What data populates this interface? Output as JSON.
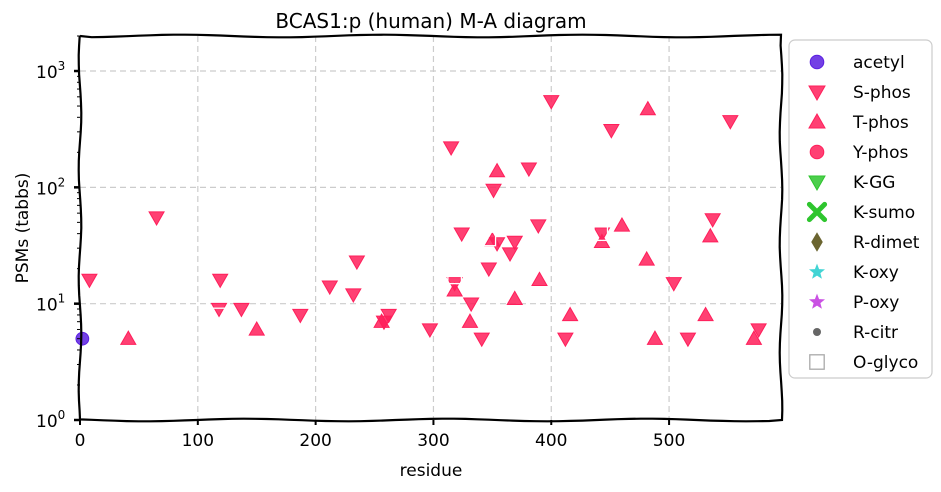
{
  "chart_data": {
    "type": "scatter",
    "title": "BCAS1:p (human) M-A diagram",
    "xlabel": "residue",
    "ylabel": "PSMs (tabbs)",
    "xlim": [
      0,
      595
    ],
    "ylim": [
      1,
      2000
    ],
    "yscale": "log",
    "grid": true,
    "legend_position": "right",
    "x_ticks": [
      {
        "value": 0,
        "label": "0"
      },
      {
        "value": 100,
        "label": "100"
      },
      {
        "value": 200,
        "label": "200"
      },
      {
        "value": 300,
        "label": "300"
      },
      {
        "value": 400,
        "label": "400"
      },
      {
        "value": 500,
        "label": "500"
      }
    ],
    "y_ticks": [
      {
        "value": 1,
        "base": "10",
        "exp": "0"
      },
      {
        "value": 10,
        "base": "10",
        "exp": "1"
      },
      {
        "value": 100,
        "base": "10",
        "exp": "2"
      },
      {
        "value": 1000,
        "base": "10",
        "exp": "3"
      }
    ],
    "series": [
      {
        "name": "acetyl",
        "marker": "circle",
        "color": "#5a1fe0",
        "points": [
          [
            2,
            5
          ]
        ]
      },
      {
        "name": "S-phos",
        "marker": "triangle-down",
        "color": "#ff1f5b",
        "points": [
          [
            8,
            16
          ],
          [
            65,
            55
          ],
          [
            118,
            9
          ],
          [
            119,
            16
          ],
          [
            137,
            9
          ],
          [
            187,
            8
          ],
          [
            212,
            14
          ],
          [
            232,
            12
          ],
          [
            235,
            23
          ],
          [
            258,
            7
          ],
          [
            262,
            8
          ],
          [
            297,
            6
          ],
          [
            315,
            220
          ],
          [
            318,
            15
          ],
          [
            324,
            40
          ],
          [
            332,
            10
          ],
          [
            341,
            5
          ],
          [
            347,
            20
          ],
          [
            351,
            95
          ],
          [
            354,
            33
          ],
          [
            365,
            27
          ],
          [
            369,
            34
          ],
          [
            381,
            145
          ],
          [
            389,
            47
          ],
          [
            400,
            550
          ],
          [
            412,
            5
          ],
          [
            443,
            40
          ],
          [
            451,
            310
          ],
          [
            504,
            15
          ],
          [
            516,
            5
          ],
          [
            537,
            53
          ],
          [
            552,
            370
          ],
          [
            576,
            6
          ]
        ]
      },
      {
        "name": "T-phos",
        "marker": "triangle-up",
        "color": "#ff1f5b",
        "points": [
          [
            41,
            5
          ],
          [
            150,
            6
          ],
          [
            256,
            7
          ],
          [
            318,
            13
          ],
          [
            331,
            7
          ],
          [
            350,
            35
          ],
          [
            354,
            138
          ],
          [
            369,
            11
          ],
          [
            390,
            16
          ],
          [
            416,
            8
          ],
          [
            443,
            34
          ],
          [
            460,
            47
          ],
          [
            481,
            24
          ],
          [
            482,
            470
          ],
          [
            488,
            5
          ],
          [
            531,
            8
          ],
          [
            535,
            38
          ],
          [
            572,
            5
          ]
        ]
      },
      {
        "name": "Y-phos",
        "marker": "circle",
        "color": "#ff1f5b",
        "points": []
      },
      {
        "name": "K-GG",
        "marker": "triangle-down",
        "color": "#2ec52e",
        "points": []
      },
      {
        "name": "K-sumo",
        "marker": "x",
        "color": "#2ec52e",
        "points": []
      },
      {
        "name": "R-dimet",
        "marker": "diamond",
        "color": "#6b6530",
        "points": []
      },
      {
        "name": "K-oxy",
        "marker": "star",
        "color": "#2ecfcf",
        "points": []
      },
      {
        "name": "P-oxy",
        "marker": "star",
        "color": "#c43ee0",
        "points": []
      },
      {
        "name": "R-citr",
        "marker": "dot",
        "color": "#666666",
        "points": []
      },
      {
        "name": "O-glyco",
        "marker": "square-open",
        "color": "#aaaaaa",
        "points": [
          [
            117,
            8
          ],
          [
            318,
            17
          ],
          [
            347,
            36
          ],
          [
            442,
            40
          ]
        ]
      }
    ]
  }
}
